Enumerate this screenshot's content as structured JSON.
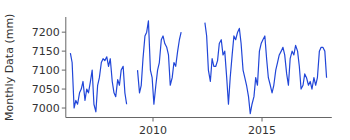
{
  "chart_data": {
    "type": "line",
    "y_label": "Monthly Data (mm)",
    "x": [
      2006.21,
      2006.29,
      2006.38,
      2006.46,
      2006.54,
      2006.63,
      2006.71,
      2006.79,
      2006.88,
      2006.96,
      2007.04,
      2007.13,
      2007.21,
      2007.29,
      2007.38,
      2007.46,
      2007.54,
      2007.63,
      2007.71,
      2007.79,
      2007.88,
      2007.96,
      2008.04,
      2008.13,
      2008.21,
      2008.29,
      2008.38,
      2008.46,
      2008.54,
      2008.63,
      2008.71,
      2008.79,
      2008.88,
      2008.96,
      2009.04,
      2009.13,
      2009.21,
      2009.29,
      2009.38,
      2009.46,
      2009.54,
      2009.63,
      2009.71,
      2009.79,
      2009.88,
      2009.96,
      2010.04,
      2010.13,
      2010.21,
      2010.29,
      2010.38,
      2010.46,
      2010.54,
      2010.63,
      2010.71,
      2010.79,
      2010.88,
      2010.96,
      2011.04,
      2011.13,
      2011.21,
      2011.29,
      2011.38,
      2011.46,
      2011.54,
      2011.63,
      2011.71,
      2011.79,
      2011.88,
      2011.96,
      2012.04,
      2012.13,
      2012.21,
      2012.29,
      2012.38,
      2012.46,
      2012.54,
      2012.63,
      2012.71,
      2012.79,
      2012.88,
      2012.96,
      2013.04,
      2013.13,
      2013.21,
      2013.29,
      2013.38,
      2013.46,
      2013.54,
      2013.63,
      2013.71,
      2013.79,
      2013.88,
      2013.96,
      2014.04,
      2014.13,
      2014.21,
      2014.29,
      2014.38,
      2014.46,
      2014.54,
      2014.63,
      2014.71,
      2014.79,
      2014.88,
      2014.96,
      2015.04,
      2015.13,
      2015.21,
      2015.29,
      2015.38,
      2015.46,
      2015.54,
      2015.63,
      2015.71,
      2015.79,
      2015.88,
      2015.96,
      2016.04,
      2016.13,
      2016.21,
      2016.29,
      2016.38,
      2016.46,
      2016.54,
      2016.63,
      2016.71,
      2016.79,
      2016.88,
      2016.96,
      2017.04,
      2017.13,
      2017.21,
      2017.29,
      2017.38,
      2017.46,
      2017.54,
      2017.63,
      2017.71,
      2017.79,
      2017.88,
      2017.96
    ],
    "values": [
      7145,
      7120,
      7000,
      7020,
      7010,
      7040,
      7050,
      7070,
      7020,
      7050,
      7040,
      7070,
      7100,
      7010,
      6990,
      7060,
      7080,
      7120,
      7130,
      7125,
      7135,
      7110,
      7130,
      7070,
      7040,
      7030,
      7075,
      7060,
      7100,
      7110,
      7040,
      7010,
      null,
      null,
      null,
      null,
      null,
      7100,
      7040,
      7060,
      7130,
      7190,
      7200,
      7230,
      7100,
      7080,
      7010,
      7060,
      7100,
      7120,
      7180,
      7190,
      7170,
      7160,
      7140,
      7060,
      7080,
      7120,
      7110,
      7150,
      7180,
      7200,
      null,
      null,
      null,
      null,
      null,
      null,
      null,
      null,
      null,
      null,
      null,
      null,
      7225,
      7190,
      7100,
      7070,
      7130,
      7110,
      7110,
      7125,
      7170,
      7180,
      7140,
      7150,
      7080,
      7010,
      7080,
      7140,
      7190,
      7180,
      7200,
      7210,
      7170,
      7100,
      7080,
      7060,
      7030,
      6985,
      7010,
      7030,
      7080,
      7060,
      7150,
      7170,
      7180,
      7190,
      7130,
      7080,
      7060,
      7040,
      7060,
      7100,
      7120,
      7140,
      7150,
      7160,
      7140,
      7090,
      7060,
      7130,
      7150,
      7140,
      7165,
      7150,
      7110,
      7050,
      7060,
      7090,
      7080,
      7060,
      7070,
      7050,
      7080,
      7060,
      7080,
      7150,
      7160,
      7160,
      7150,
      7080
    ],
    "color": "#2146d8",
    "xlim": [
      2006.0,
      2018.2
    ],
    "xticks": [
      2010,
      2015
    ],
    "ylim": [
      6975,
      7240
    ],
    "yticks": [
      7000,
      7050,
      7100,
      7150,
      7200
    ],
    "grid": false
  }
}
